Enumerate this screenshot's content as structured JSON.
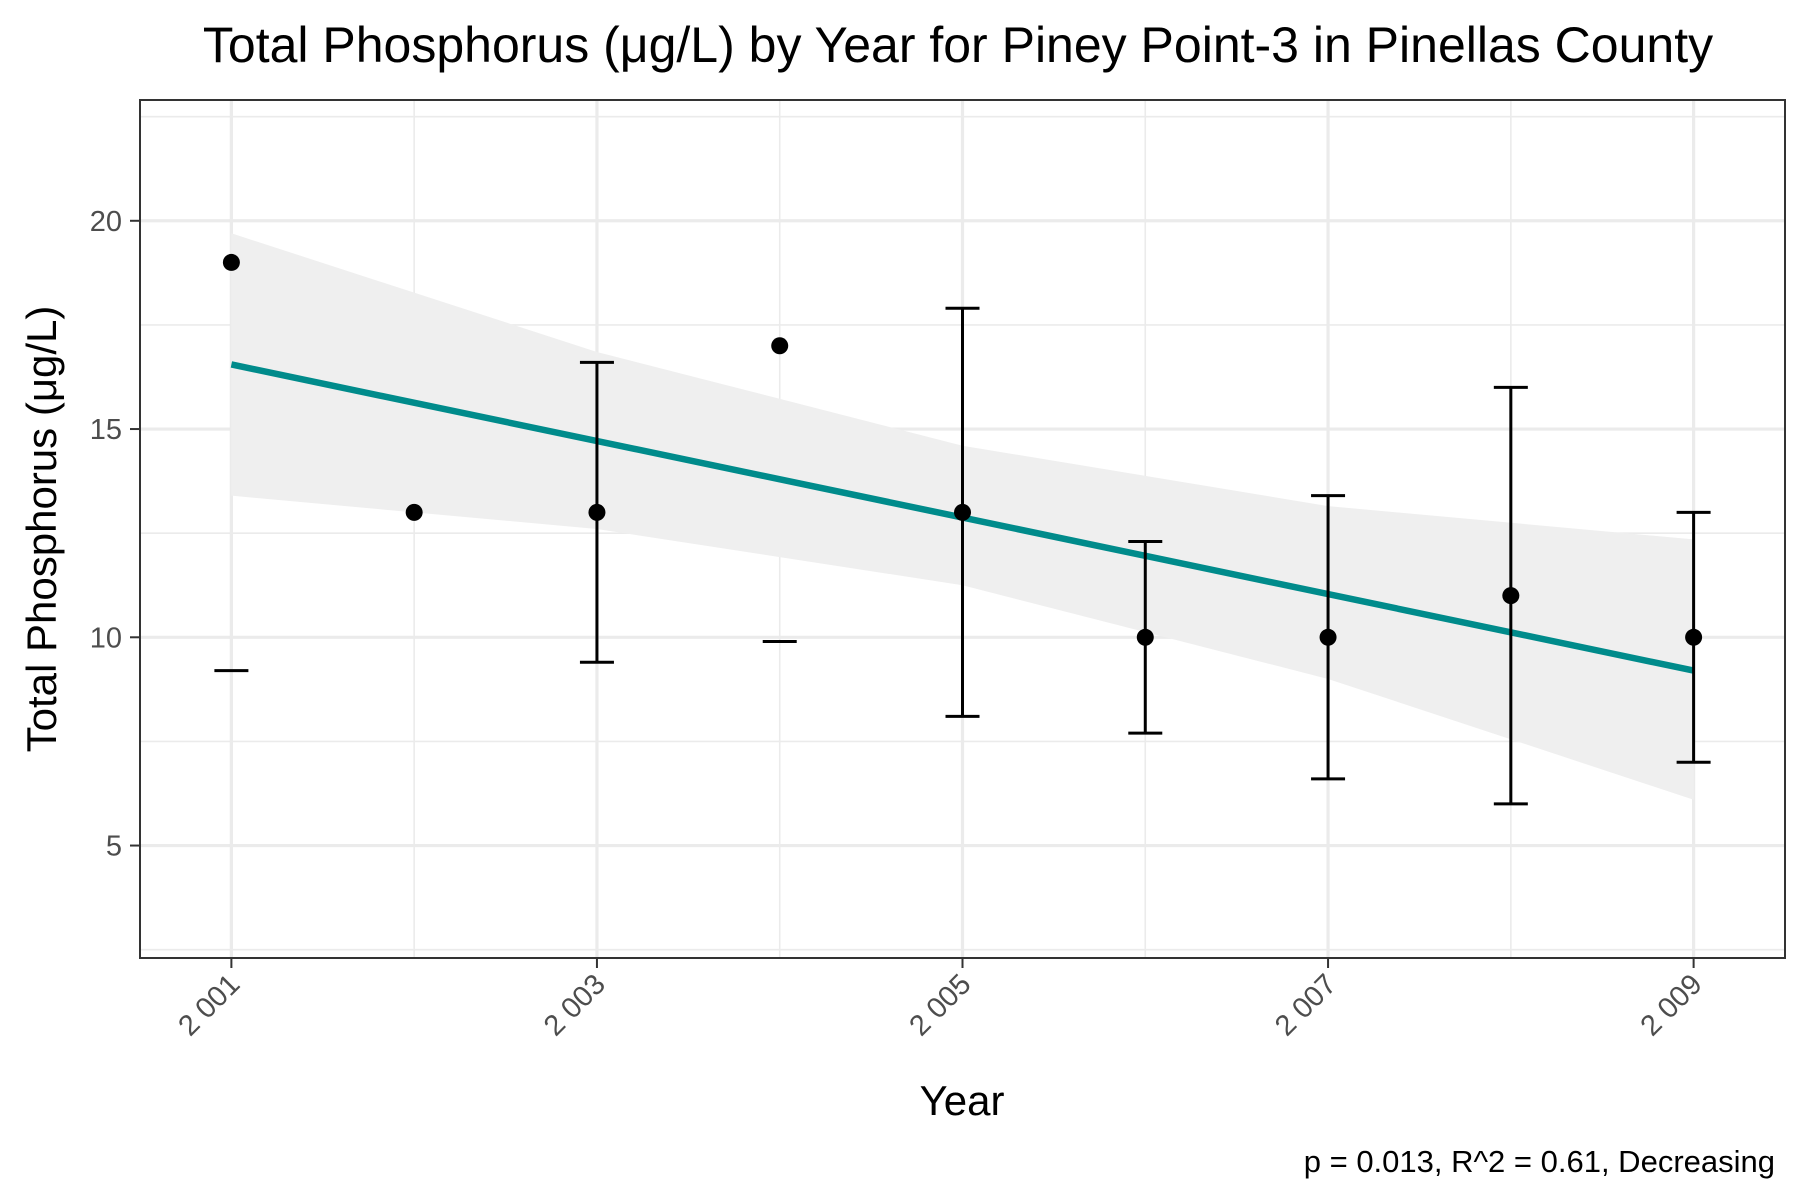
{
  "chart_data": {
    "type": "scatter",
    "title": "Total Phosphorus (μg/L) by Year for Piney Point-3 in Pinellas County",
    "xlabel": "Year",
    "ylabel": "Total Phosphorus (μg/L)",
    "xlim": [
      2000.5,
      2009.5
    ],
    "ylim": [
      2.3,
      22.9
    ],
    "x_ticks": [
      2001,
      2003,
      2005,
      2007,
      2009
    ],
    "x_tick_labels": [
      "2 001",
      "2 003",
      "2 005",
      "2 007",
      "2 009"
    ],
    "y_ticks": [
      5,
      10,
      15,
      20
    ],
    "y_tick_labels": [
      "5",
      "10",
      "15",
      "20"
    ],
    "grid": true,
    "series": [
      {
        "points": [
          {
            "x": 2001,
            "y": 19,
            "ymin": 9.2,
            "ymax": null
          },
          {
            "x": 2002,
            "y": 13,
            "ymin": null,
            "ymax": null
          },
          {
            "x": 2003,
            "y": 13,
            "ymin": 9.4,
            "ymax": 16.6
          },
          {
            "x": 2004,
            "y": 17,
            "ymin": 9.9,
            "ymax": null
          },
          {
            "x": 2005,
            "y": 13,
            "ymin": 8.1,
            "ymax": 17.9
          },
          {
            "x": 2006,
            "y": 10,
            "ymin": 7.7,
            "ymax": 12.3
          },
          {
            "x": 2007,
            "y": 10,
            "ymin": 6.6,
            "ymax": 13.4
          },
          {
            "x": 2008,
            "y": 11,
            "ymin": 6.0,
            "ymax": 16.0
          },
          {
            "x": 2009,
            "y": 10,
            "ymin": 7.0,
            "ymax": 13.0
          }
        ]
      }
    ],
    "trend": {
      "x": [
        2001,
        2009
      ],
      "y": [
        16.55,
        9.2
      ],
      "ci_x": [
        2001,
        2003,
        2005,
        2007,
        2009
      ],
      "ci_lower": [
        13.4,
        12.6,
        11.25,
        9.0,
        6.1
      ],
      "ci_upper": [
        19.7,
        16.85,
        14.6,
        13.15,
        12.35
      ]
    },
    "annotation": "p = 0.013, R^2 = 0.61, Decreasing",
    "colors": {
      "trend_line": "#008b8b",
      "ci_band": "#efefef",
      "points": "#000000",
      "grid": "#ebebeb",
      "panel_border": "#333333"
    }
  }
}
